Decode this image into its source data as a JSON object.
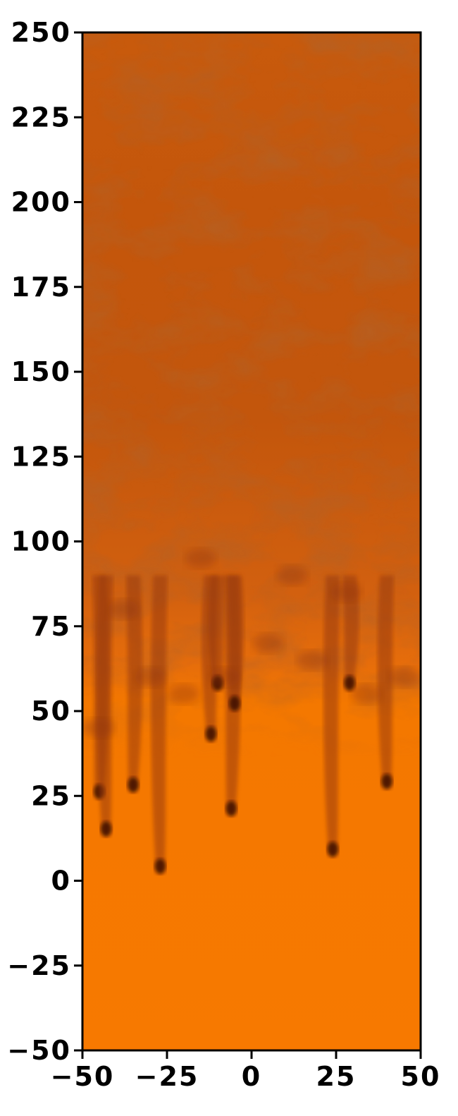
{
  "chart_data": {
    "type": "heatmap",
    "title": "",
    "xlabel": "",
    "ylabel": "",
    "xlim": [
      -50,
      50
    ],
    "ylim": [
      -50,
      250
    ],
    "x_ticks": [
      -50,
      -25,
      0,
      25,
      50
    ],
    "y_ticks": [
      250,
      225,
      200,
      175,
      150,
      125,
      100,
      75,
      50,
      25,
      0,
      -25,
      -50
    ],
    "x_tick_labels": [
      "−50",
      "−25",
      "0",
      "25",
      "50"
    ],
    "y_tick_labels": [
      "250",
      "225",
      "200",
      "175",
      "150",
      "125",
      "100",
      "75",
      "50",
      "25",
      "0",
      "−25",
      "−50"
    ],
    "grid": false,
    "colormap": {
      "low": "#f77a00",
      "mid": "#d96410",
      "high": "#b44a0b",
      "darkest": "#3a0d05"
    },
    "field_description_values": {
      "uniform_level_below": 45,
      "mixing_front_top": 180,
      "plume_tips": [
        {
          "x": -27,
          "y": 3
        },
        {
          "x": -45,
          "y": 25
        },
        {
          "x": -43,
          "y": 14
        },
        {
          "x": -6,
          "y": 20
        },
        {
          "x": 24,
          "y": 8
        },
        {
          "x": 29,
          "y": 57
        },
        {
          "x": -12,
          "y": 42
        },
        {
          "x": -5,
          "y": 51
        },
        {
          "x": -10,
          "y": 57
        },
        {
          "x": -35,
          "y": 27
        },
        {
          "x": 40,
          "y": 28
        }
      ]
    }
  }
}
